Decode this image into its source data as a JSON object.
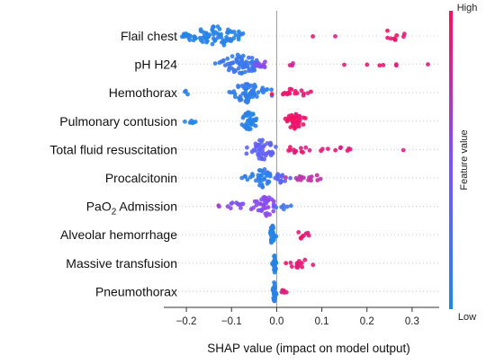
{
  "chart_data": {
    "type": "scatter",
    "subtype": "shap-beeswarm",
    "xlabel": "SHAP value (impact on model output)",
    "xlim": [
      -0.25,
      0.36
    ],
    "xticks": [
      -0.2,
      -0.1,
      0.0,
      0.1,
      0.2,
      0.3
    ],
    "xtick_labels": [
      "−0.2",
      "−0.1",
      "0.0",
      "0.1",
      "0.2",
      "0.3"
    ],
    "zero_line": 0.0,
    "grid": false,
    "features": [
      {
        "label": "Flail chest",
        "sub": "",
        "suffix": ""
      },
      {
        "label": "pH H24",
        "sub": "",
        "suffix": ""
      },
      {
        "label": "Hemothorax",
        "sub": "",
        "suffix": ""
      },
      {
        "label": "Pulmonary contusion",
        "sub": "",
        "suffix": ""
      },
      {
        "label": "Total fluid resuscitation",
        "sub": "",
        "suffix": ""
      },
      {
        "label": "Procalcitonin",
        "sub": "",
        "suffix": ""
      },
      {
        "label": "PaO",
        "sub": "2",
        "suffix": " Admission"
      },
      {
        "label": "Alveolar hemorrhage",
        "sub": "",
        "suffix": ""
      },
      {
        "label": "Massive transfusion",
        "sub": "",
        "suffix": ""
      },
      {
        "label": "Pneumothorax",
        "sub": "",
        "suffix": ""
      }
    ],
    "clusters": [
      [
        {
          "center": -0.13,
          "spread": 0.045,
          "n": 70,
          "height": 1.0,
          "color": 0.05
        },
        {
          "center": -0.2,
          "spread": 0.012,
          "n": 10,
          "height": 0.25,
          "color": 0.05
        },
        {
          "center": 0.08,
          "spread": 0.002,
          "n": 1,
          "height": 0.1,
          "color": 0.9
        },
        {
          "center": 0.13,
          "spread": 0.002,
          "n": 1,
          "height": 0.1,
          "color": 0.9
        },
        {
          "center": 0.25,
          "spread": 0.015,
          "n": 7,
          "height": 0.6,
          "color": 0.95
        },
        {
          "center": 0.283,
          "spread": 0.003,
          "n": 2,
          "height": 0.3,
          "color": 0.95
        }
      ],
      [
        {
          "center": -0.08,
          "spread": 0.035,
          "n": 65,
          "height": 1.0,
          "color": 0.15
        },
        {
          "center": -0.03,
          "spread": 0.012,
          "n": 10,
          "height": 0.35,
          "color": 0.55
        },
        {
          "center": 0.03,
          "spread": 0.006,
          "n": 3,
          "height": 0.2,
          "color": 0.85
        },
        {
          "center": 0.15,
          "spread": 0.002,
          "n": 1,
          "height": 0.1,
          "color": 0.9
        },
        {
          "center": 0.2,
          "spread": 0.002,
          "n": 1,
          "height": 0.1,
          "color": 0.9
        },
        {
          "center": 0.23,
          "spread": 0.005,
          "n": 2,
          "height": 0.15,
          "color": 0.9
        },
        {
          "center": 0.265,
          "spread": 0.003,
          "n": 2,
          "height": 0.15,
          "color": 0.9
        },
        {
          "center": 0.34,
          "spread": 0.002,
          "n": 1,
          "height": 0.1,
          "color": 0.9
        }
      ],
      [
        {
          "center": -0.065,
          "spread": 0.028,
          "n": 60,
          "height": 1.0,
          "color": 0.1
        },
        {
          "center": 0.04,
          "spread": 0.025,
          "n": 18,
          "height": 0.45,
          "color": 0.92
        },
        {
          "center": -0.2,
          "spread": 0.01,
          "n": 3,
          "height": 0.2,
          "color": 0.05
        }
      ],
      [
        {
          "center": -0.06,
          "spread": 0.012,
          "n": 35,
          "height": 1.0,
          "color": 0.05
        },
        {
          "center": 0.04,
          "spread": 0.015,
          "n": 45,
          "height": 0.8,
          "color": 0.95
        },
        {
          "center": -0.19,
          "spread": 0.012,
          "n": 6,
          "height": 0.2,
          "color": 0.05
        }
      ],
      [
        {
          "center": -0.03,
          "spread": 0.025,
          "n": 45,
          "height": 1.0,
          "color": 0.35
        },
        {
          "center": 0.04,
          "spread": 0.03,
          "n": 12,
          "height": 0.4,
          "color": 0.9
        },
        {
          "center": 0.14,
          "spread": 0.04,
          "n": 9,
          "height": 0.25,
          "color": 0.9
        },
        {
          "center": 0.28,
          "spread": 0.002,
          "n": 1,
          "height": 0.1,
          "color": 0.9
        }
      ],
      [
        {
          "center": -0.03,
          "spread": 0.015,
          "n": 35,
          "height": 1.0,
          "color": 0.1
        },
        {
          "center": 0.01,
          "spread": 0.012,
          "n": 14,
          "height": 0.5,
          "color": 0.3
        },
        {
          "center": 0.07,
          "spread": 0.025,
          "n": 14,
          "height": 0.4,
          "color": 0.75
        },
        {
          "center": -0.07,
          "spread": 0.01,
          "n": 4,
          "height": 0.2,
          "color": 0.1
        }
      ],
      [
        {
          "center": -0.025,
          "spread": 0.02,
          "n": 40,
          "height": 1.0,
          "color": 0.55
        },
        {
          "center": -0.09,
          "spread": 0.02,
          "n": 10,
          "height": 0.4,
          "color": 0.5
        },
        {
          "center": 0.015,
          "spread": 0.01,
          "n": 6,
          "height": 0.3,
          "color": 0.15
        },
        {
          "center": -0.13,
          "spread": 0.006,
          "n": 2,
          "height": 0.15,
          "color": 0.7
        }
      ],
      [
        {
          "center": -0.01,
          "spread": 0.004,
          "n": 30,
          "height": 1.0,
          "color": 0.05
        },
        {
          "center": 0.055,
          "spread": 0.01,
          "n": 8,
          "height": 0.5,
          "color": 0.92
        }
      ],
      [
        {
          "center": -0.005,
          "spread": 0.003,
          "n": 30,
          "height": 1.0,
          "color": 0.05
        },
        {
          "center": 0.05,
          "spread": 0.025,
          "n": 16,
          "height": 0.45,
          "color": 0.92
        }
      ],
      [
        {
          "center": -0.005,
          "spread": 0.003,
          "n": 30,
          "height": 1.0,
          "color": 0.05
        },
        {
          "center": 0.015,
          "spread": 0.006,
          "n": 6,
          "height": 0.35,
          "color": 0.9
        }
      ]
    ],
    "colorbar": {
      "label": "Feature value",
      "high_label": "High",
      "low_label": "Low",
      "low_color": "#1E88E5",
      "high_color": "#FF0D57",
      "mid_color": "#7C52FF"
    }
  }
}
